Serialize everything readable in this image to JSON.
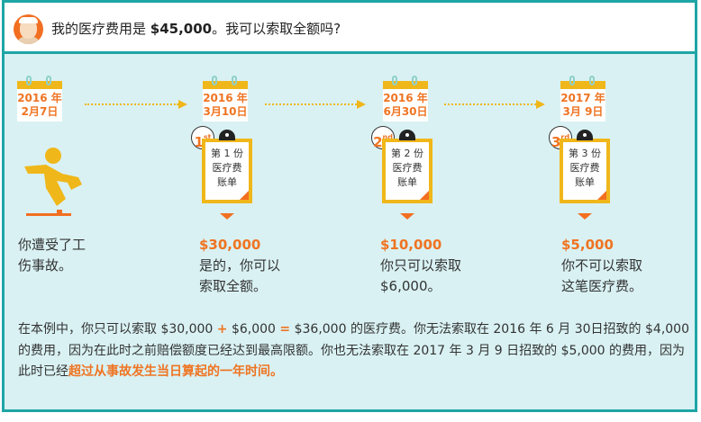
{
  "header": {
    "question_prefix": "我的医疗费用是 ",
    "question_amount": "$45,000",
    "question_suffix": "。我可以索取全额吗?"
  },
  "timeline": [
    {
      "date_line1": "2016 年",
      "date_line2": "2月7日",
      "desc_lines": [
        "你遭受了工",
        "伤事故。"
      ]
    },
    {
      "date_line1": "2016 年",
      "date_line2": "3月10日",
      "badge_num": "1",
      "badge_sup": "st",
      "bill_lines": [
        "第 1 份",
        "医疗费",
        "账单"
      ],
      "amount": "$30,000",
      "desc_lines": [
        "是的，你可以",
        "索取全额。"
      ]
    },
    {
      "date_line1": "2016 年",
      "date_line2": "6月30日",
      "badge_num": "2",
      "badge_sup": "nd",
      "bill_lines": [
        "第 2 份",
        "医疗费",
        "账单"
      ],
      "amount": "$10,000",
      "desc_lines": [
        "你只可以索取",
        "$6,000。"
      ]
    },
    {
      "date_line1": "2017 年",
      "date_line2": "3月 9日",
      "badge_num": "3",
      "badge_sup": "rd",
      "bill_lines": [
        "第 3 份",
        "医疗费",
        "账单"
      ],
      "amount": "$5,000",
      "desc_lines": [
        "你不可以索取",
        "这笔医疗费。"
      ]
    }
  ],
  "summary": {
    "p1": "在本例中，你只可以索取 $30,000 ",
    "plus": "+",
    "p2": " $6,000 ",
    "eq": "=",
    "p3": " $36,000 的医疗费。你无法索取在 2016 年 6 月 30日招致的 $4,000 的费用，因为在此时之前赔偿额度已经达到最高限额。你也无法索取在 2017 年 3 月 9 日招致的 $5,000 的费用，因为此时已经",
    "highlight": "超过从事故发生当日算起的一年时间。"
  },
  "colors": {
    "border": "#1ea5a5",
    "background": "#d9f1f3",
    "accent": "#ef7422",
    "yellow": "#f0b71a"
  }
}
